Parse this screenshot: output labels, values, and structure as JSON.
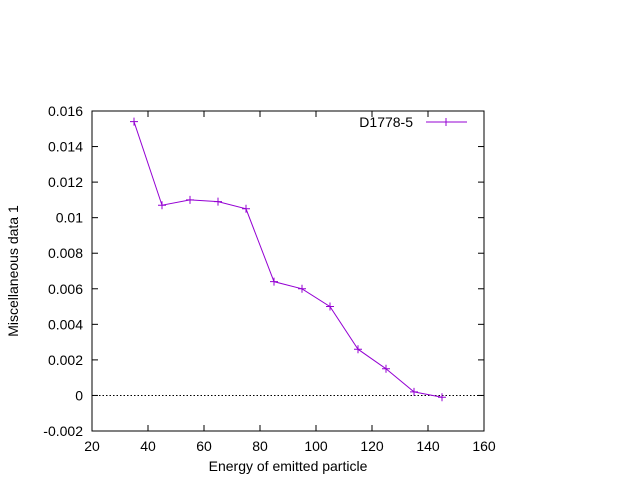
{
  "chart_data": {
    "type": "line",
    "title": "",
    "xlabel": "Energy of emitted particle",
    "ylabel": "Miscellaneous data 1",
    "xlim": [
      20,
      160
    ],
    "ylim": [
      -0.002,
      0.016
    ],
    "x_ticks": [
      20,
      40,
      60,
      80,
      100,
      120,
      140,
      160
    ],
    "x_tick_labels": [
      "20",
      "40",
      "60",
      "80",
      "100",
      "120",
      "140",
      "160"
    ],
    "y_ticks": [
      -0.002,
      0,
      0.002,
      0.004,
      0.006,
      0.008,
      0.01,
      0.012,
      0.014,
      0.016
    ],
    "y_tick_labels": [
      "-0.002",
      "0",
      "0.002",
      "0.004",
      "0.006",
      "0.008",
      "0.01",
      "0.012",
      "0.014",
      "0.016"
    ],
    "grid": false,
    "zero_line": true,
    "legend_position": "top-right",
    "series": [
      {
        "name": "D1778-5",
        "color": "#9400d3",
        "marker": "plus",
        "x": [
          35,
          45,
          55,
          65,
          75,
          85,
          95,
          105,
          115,
          125,
          135,
          145
        ],
        "y": [
          0.0154,
          0.0107,
          0.011,
          0.0109,
          0.0105,
          0.0064,
          0.006,
          0.005,
          0.0026,
          0.0015,
          0.0002,
          -0.0001
        ]
      }
    ]
  }
}
